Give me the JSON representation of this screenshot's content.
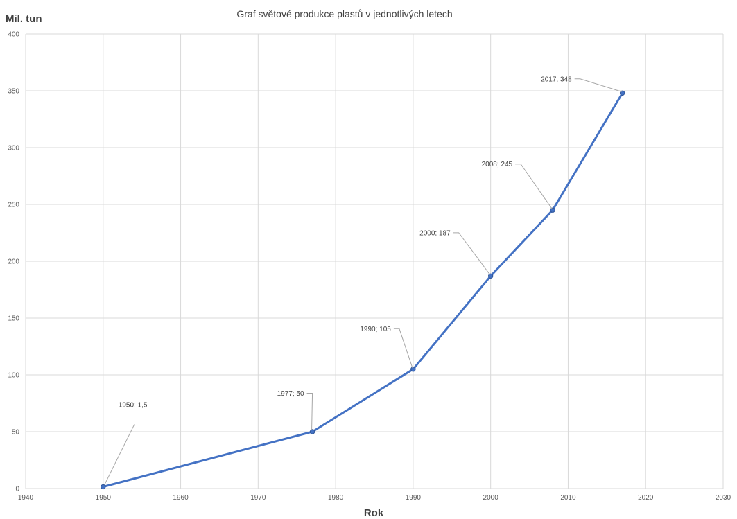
{
  "chart_data": {
    "type": "scatter",
    "title": "Graf světové produkce plastů v jednotlivých letech",
    "xlabel": "Rok",
    "ylabel": "Mil. tun",
    "xlim": [
      1940,
      2030
    ],
    "ylim": [
      0,
      400
    ],
    "xticks": [
      1940,
      1950,
      1960,
      1970,
      1980,
      1990,
      2000,
      2010,
      2020,
      2030
    ],
    "yticks": [
      0,
      50,
      100,
      150,
      200,
      250,
      300,
      350,
      400
    ],
    "grid": true,
    "legend": "none",
    "line_color": "#4472c4",
    "series": [
      {
        "x": [
          1950,
          1977,
          1990,
          2000,
          2008,
          2017
        ],
        "y": [
          1.5,
          50,
          105,
          187,
          245,
          348
        ],
        "labels": [
          "1950; 1,5",
          "1977; 50",
          "1990; 105",
          "2000; 187",
          "2008; 245",
          "2017; 348"
        ]
      }
    ]
  }
}
